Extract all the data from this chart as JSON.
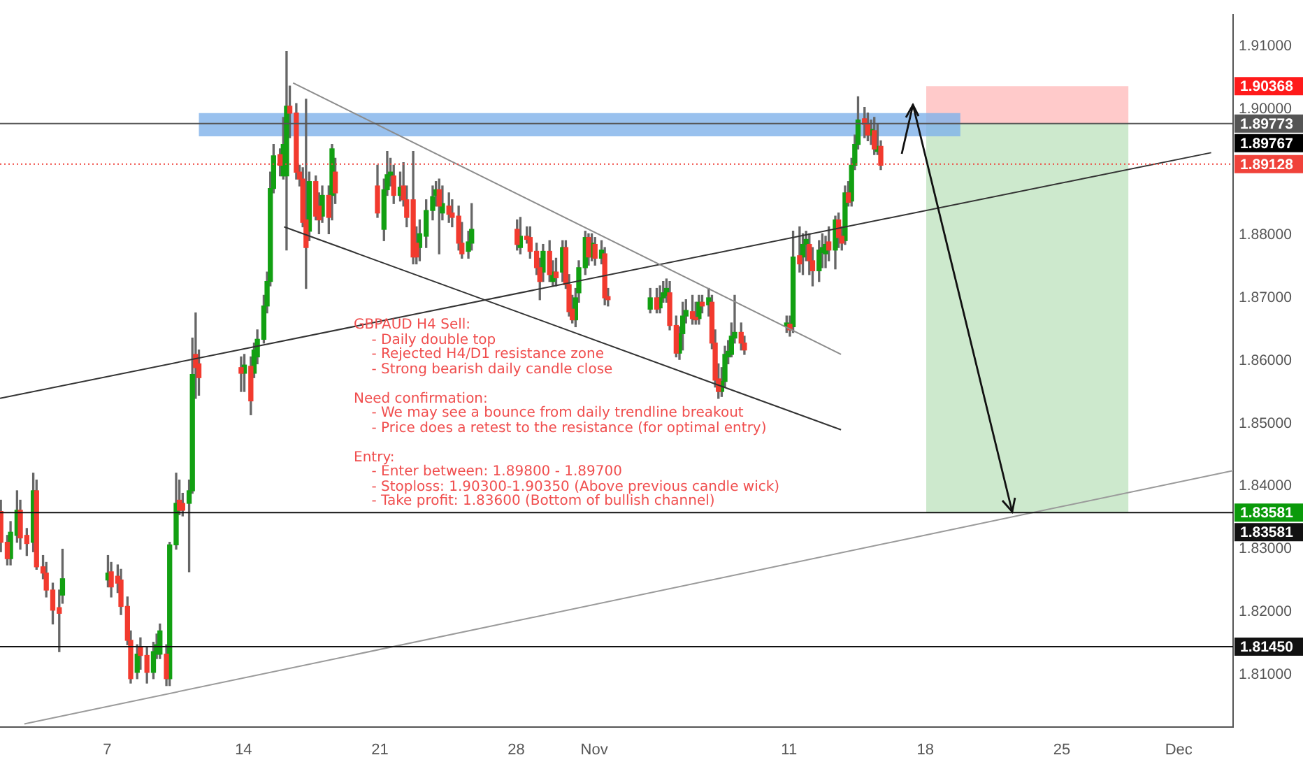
{
  "chart_data": {
    "type": "candlestick",
    "xlim": [
      "--10-01T12:00",
      "--12-03T19:00"
    ],
    "xticks": [
      {
        "value": "--10-07",
        "label": "7"
      },
      {
        "value": "--10-14",
        "label": "14"
      },
      {
        "value": "--10-21",
        "label": "21"
      },
      {
        "value": "--10-28",
        "label": "28"
      },
      {
        "value": "--11-01",
        "label": "Nov"
      },
      {
        "value": "--11-11",
        "label": "11"
      },
      {
        "value": "--11-18",
        "label": "18"
      },
      {
        "value": "--11-25",
        "label": "25"
      },
      {
        "value": "--12-01",
        "label": "Dec"
      }
    ],
    "ylim": [
      1.8017,
      1.9151
    ],
    "yticks": [
      {
        "value": 1.81,
        "label": "1.81000"
      },
      {
        "value": 1.82,
        "label": "1.82000"
      },
      {
        "value": 1.83,
        "label": "1.83000"
      },
      {
        "value": 1.84,
        "label": "1.84000"
      },
      {
        "value": 1.85,
        "label": "1.85000"
      },
      {
        "value": 1.86,
        "label": "1.86000"
      },
      {
        "value": 1.87,
        "label": "1.87000"
      },
      {
        "value": 1.88,
        "label": "1.88000"
      },
      {
        "value": 1.9,
        "label": "1.90000"
      },
      {
        "value": 1.91,
        "label": "1.91000"
      }
    ],
    "series": [
      {
        "type": "area",
        "color": "#ffcaca",
        "x": [
          "--11-18T01:00",
          "--11-28T10:00",
          "--11-28T10:00",
          "--11-18T01:00"
        ],
        "values": [
          1.90368,
          1.90368,
          1.89773,
          1.89773
        ]
      },
      {
        "type": "area",
        "color": "#cde9cd",
        "x": [
          "--11-18T01:00",
          "--11-28T10:00",
          "--11-28T10:00",
          "--11-18T01:00"
        ],
        "values": [
          1.89773,
          1.89773,
          1.83581,
          1.83581
        ]
      },
      {
        "type": "area",
        "color": "#7fb2ea",
        "x": [
          "--10-11T17:00",
          "--11-19T19:00",
          "--11-19T19:00",
          "--10-11T17:00"
        ],
        "values": [
          1.8994,
          1.8994,
          1.8957,
          1.8957
        ]
      },
      {
        "color": "#f23a2e",
        "x": [
          "--10-01T13:00",
          "--10-01T21:00",
          "--10-02T13:00",
          "--10-02T21:00",
          "--10-03T09:00",
          "--10-03T17:00",
          "--10-03T21:00",
          "--10-04T05:00",
          "--10-04T13:00",
          "--10-07T05:00",
          "--10-07T13:00",
          "--10-07T17:00",
          "--10-08T01:00",
          "--10-08T05:00",
          "--10-08T17:00",
          "--10-09T01:00",
          "--10-10T01:00",
          "--10-10T17:00",
          "--10-10T21:00",
          "--10-11T13:00",
          "--10-11T17:00",
          "--10-13T21:00",
          "--10-14T09:00",
          "--10-15T21:00",
          "--10-16T09:00",
          "--10-16T17:00",
          "--10-16T21:00",
          "--10-17T01:00",
          "--10-17T05:00",
          "--10-17T17:00",
          "--10-17T21:00",
          "--10-18T09:00",
          "--10-18T17:00",
          "--10-20T21:00",
          "--10-21T17:00",
          "--10-22T05:00",
          "--10-22T09:00",
          "--10-22T17:00",
          "--10-22T21:00",
          "--10-24T01:00",
          "--10-24T13:00",
          "--10-24T17:00",
          "--10-25T01:00",
          "--10-25T05:00",
          "--10-28T01:00",
          "--10-28T13:00",
          "--10-28T17:00",
          "--10-29T01:00",
          "--10-29T05:00",
          "--10-29T17:00",
          "--10-30T01:00",
          "--10-30T13:00",
          "--10-30T17:00",
          "--10-30T21:00",
          "--10-31T17:00",
          "--11-01T01:00",
          "--11-01T13:00",
          "--11-01T17:00",
          "--11-04T05:00",
          "--11-04T21:00",
          "--11-05T05:00",
          "--11-06T01:00",
          "--11-06T05:00",
          "--11-06T13:00",
          "--11-07T01:00",
          "--11-07T05:00",
          "--11-07T09:00",
          "--11-08T13:00",
          "--11-08T17:00",
          "--11-11T01:00",
          "--11-11T13:00",
          "--11-12T01:00",
          "--11-12T05:00",
          "--11-13T01:00",
          "--11-13T13:00",
          "--11-13T17:00",
          "--11-14T01:00",
          "--11-14T21:00",
          "--11-15T01:00",
          "--11-15T09:00",
          "--11-15T17:00"
        ],
        "ohlc": [
          [
            1.836,
            1.8378,
            1.8296,
            1.8311
          ],
          [
            1.8311,
            1.8322,
            1.8275,
            1.8285
          ],
          [
            1.8362,
            1.8378,
            1.83,
            1.8318
          ],
          [
            1.8322,
            1.8333,
            1.829,
            1.8309
          ],
          [
            1.8393,
            1.841,
            1.8268,
            1.8272
          ],
          [
            1.8272,
            1.829,
            1.8253,
            1.8262
          ],
          [
            1.8262,
            1.8279,
            1.8224,
            1.8235
          ],
          [
            1.8235,
            1.8246,
            1.8181,
            1.8203
          ],
          [
            1.8207,
            1.8235,
            1.8137,
            1.8198
          ],
          [
            1.8264,
            1.8279,
            1.8224,
            1.824
          ],
          [
            1.8257,
            1.8275,
            1.8231,
            1.8246
          ],
          [
            1.8251,
            1.8268,
            1.8196,
            1.8209
          ],
          [
            1.8209,
            1.8224,
            1.8148,
            1.8155
          ],
          [
            1.8155,
            1.817,
            1.8087,
            1.8094
          ],
          [
            1.8144,
            1.8159,
            1.8109,
            1.8131
          ],
          [
            1.8131,
            1.8144,
            1.8087,
            1.8104
          ],
          [
            1.8133,
            1.8148,
            1.8083,
            1.8094
          ],
          [
            1.8378,
            1.841,
            1.8355,
            1.8362
          ],
          [
            1.8373,
            1.8389,
            1.8353,
            1.8362
          ],
          [
            1.861,
            1.8676,
            1.854,
            1.8589
          ],
          [
            1.8595,
            1.8617,
            1.8545,
            1.8573
          ],
          [
            1.8589,
            1.8606,
            1.8551,
            1.858
          ],
          [
            1.8591,
            1.8606,
            1.8514,
            1.8536
          ],
          [
            1.8928,
            1.8937,
            1.8894,
            1.8911
          ],
          [
            1.9005,
            1.9037,
            1.8955,
            1.8994
          ],
          [
            1.8994,
            1.9009,
            1.8889,
            1.89
          ],
          [
            1.89,
            1.8911,
            1.8878,
            1.8889
          ],
          [
            1.8889,
            1.8907,
            1.8813,
            1.882
          ],
          [
            1.8824,
            1.9016,
            1.8715,
            1.878
          ],
          [
            1.8885,
            1.8894,
            1.8824,
            1.883
          ],
          [
            1.8846,
            1.8867,
            1.8802,
            1.8824
          ],
          [
            1.8863,
            1.8878,
            1.8802,
            1.8828
          ],
          [
            1.89,
            1.8922,
            1.885,
            1.8867
          ],
          [
            1.8878,
            1.8911,
            1.8828,
            1.8835
          ],
          [
            1.8894,
            1.8911,
            1.885,
            1.8863
          ],
          [
            1.8878,
            1.8915,
            1.8846,
            1.8856
          ],
          [
            1.8856,
            1.8878,
            1.8813,
            1.8828
          ],
          [
            1.8856,
            1.8933,
            1.8754,
            1.8765
          ],
          [
            1.8787,
            1.8813,
            1.8754,
            1.8765
          ],
          [
            1.8872,
            1.8889,
            1.877,
            1.8846
          ],
          [
            1.8846,
            1.8867,
            1.882,
            1.8833
          ],
          [
            1.8835,
            1.8856,
            1.8813,
            1.8828
          ],
          [
            1.883,
            1.8846,
            1.8776,
            1.8787
          ],
          [
            1.8787,
            1.882,
            1.8763,
            1.877
          ],
          [
            1.8809,
            1.8824,
            1.8776,
            1.8785
          ],
          [
            1.8798,
            1.8813,
            1.8787,
            1.8793
          ],
          [
            1.8796,
            1.8813,
            1.8763,
            1.8774
          ],
          [
            1.8774,
            1.8787,
            1.8737,
            1.8748
          ],
          [
            1.8748,
            1.8763,
            1.8697,
            1.8726
          ],
          [
            1.8774,
            1.8791,
            1.8726,
            1.8737
          ],
          [
            1.8741,
            1.8763,
            1.8719,
            1.8732
          ],
          [
            1.878,
            1.8791,
            1.8715,
            1.8721
          ],
          [
            1.8721,
            1.8737,
            1.8671,
            1.8678
          ],
          [
            1.8682,
            1.8704,
            1.866,
            1.8665
          ],
          [
            1.8796,
            1.8802,
            1.8752,
            1.8765
          ],
          [
            1.8785,
            1.8796,
            1.8752,
            1.8763
          ],
          [
            1.877,
            1.878,
            1.8689,
            1.87
          ],
          [
            1.8702,
            1.8715,
            1.8687,
            1.8697
          ],
          [
            1.87,
            1.8715,
            1.8676,
            1.8682
          ],
          [
            1.8708,
            1.8726,
            1.8649,
            1.8656
          ],
          [
            1.8656,
            1.8671,
            1.8606,
            1.8612
          ],
          [
            1.8678,
            1.8704,
            1.8658,
            1.8667
          ],
          [
            1.8669,
            1.8693,
            1.8658,
            1.8665
          ],
          [
            1.8693,
            1.8704,
            1.8676,
            1.8687
          ],
          [
            1.8693,
            1.8704,
            1.8619,
            1.8628
          ],
          [
            1.8628,
            1.8649,
            1.8558,
            1.8569
          ],
          [
            1.8571,
            1.8595,
            1.854,
            1.8551
          ],
          [
            1.8645,
            1.866,
            1.8617,
            1.8628
          ],
          [
            1.8628,
            1.8639,
            1.861,
            1.8617
          ],
          [
            1.8658,
            1.8671,
            1.8639,
            1.8649
          ],
          [
            1.8767,
            1.8813,
            1.8741,
            1.8754
          ],
          [
            1.8785,
            1.8802,
            1.8737,
            1.8759
          ],
          [
            1.8759,
            1.878,
            1.8719,
            1.8743
          ],
          [
            1.8789,
            1.8813,
            1.8759,
            1.8776
          ],
          [
            1.8824,
            1.8835,
            1.878,
            1.8796
          ],
          [
            1.8798,
            1.8813,
            1.8776,
            1.8787
          ],
          [
            1.8867,
            1.8885,
            1.8846,
            1.8852
          ],
          [
            1.8985,
            1.9003,
            1.8955,
            1.8976
          ],
          [
            1.8976,
            1.8994,
            1.895,
            1.8959
          ],
          [
            1.8966,
            1.8987,
            1.8928,
            1.8937
          ],
          [
            1.8941,
            1.895,
            1.8904,
            1.8911
          ]
        ]
      },
      {
        "color": "#12a012",
        "x": [
          "--10-02T01:00",
          "--10-02T09:00",
          "--10-03T05:00",
          "--10-04T17:00",
          "--10-07T01:00",
          "--10-08T13:00",
          "--10-09T09:00",
          "--10-09T13:00",
          "--10-09T17:00",
          "--10-10T05:00",
          "--10-10T13:00",
          "--10-11T05:00",
          "--10-11T09:00",
          "--10-14T01:00",
          "--10-14T13:00",
          "--10-14T17:00",
          "--10-15T01:00",
          "--10-15T05:00",
          "--10-15T09:00",
          "--10-15T13:00",
          "--10-16T01:00",
          "--10-16T05:00",
          "--10-17T09:00",
          "--10-18T01:00",
          "--10-18T13:00",
          "--10-21T05:00",
          "--10-21T09:00",
          "--10-21T13:00",
          "--10-22T01:00",
          "--10-23T01:00",
          "--10-23T09:00",
          "--10-23T17:00",
          "--10-23T21:00",
          "--10-24T05:00",
          "--10-25T13:00",
          "--10-25T17:00",
          "--10-28T05:00",
          "--10-29T09:00",
          "--10-29T21:00",
          "--10-30T09:00",
          "--10-31T01:00",
          "--10-31T05:00",
          "--10-31T13:00",
          "--10-31T21:00",
          "--11-01T09:00",
          "--11-03T21:00",
          "--11-04T09:00",
          "--11-04T13:00",
          "--11-04T17:00",
          "--11-05T09:00",
          "--11-05T13:00",
          "--11-05T17:00",
          "--11-06T09:00",
          "--11-06T21:00",
          "--11-07T13:00",
          "--11-07T17:00",
          "--11-07T21:00",
          "--11-08T01:00",
          "--11-08T05:00",
          "--11-10T21:00",
          "--11-11T05:00",
          "--11-11T17:00",
          "--11-11T21:00",
          "--11-12T13:00",
          "--11-12T17:00",
          "--11-12T21:00",
          "--11-13T09:00",
          "--11-13T21:00",
          "--11-14T05:00",
          "--11-14T09:00",
          "--11-14T13:00",
          "--11-15T05:00",
          "--11-15T13:00"
        ],
        "ohlc": [
          [
            1.8285,
            1.8344,
            1.8275,
            1.8327
          ],
          [
            1.8322,
            1.8393,
            1.8311,
            1.8362
          ],
          [
            1.8311,
            1.8421,
            1.8296,
            1.8393
          ],
          [
            1.8227,
            1.83,
            1.8214,
            1.8253
          ],
          [
            1.8251,
            1.829,
            1.824,
            1.8262
          ],
          [
            1.8104,
            1.8148,
            1.8094,
            1.8133
          ],
          [
            1.8104,
            1.8152,
            1.8094,
            1.8137
          ],
          [
            1.8133,
            1.8165,
            1.8126,
            1.8148
          ],
          [
            1.8133,
            1.8181,
            1.8126,
            1.817
          ],
          [
            1.8094,
            1.8311,
            1.8083,
            1.8307
          ],
          [
            1.8307,
            1.8421,
            1.83,
            1.8373
          ],
          [
            1.8373,
            1.841,
            1.8264,
            1.8393
          ],
          [
            1.8393,
            1.8636,
            1.8389,
            1.8578
          ],
          [
            1.858,
            1.861,
            1.8551,
            1.8593
          ],
          [
            1.858,
            1.8628,
            1.8573,
            1.8617
          ],
          [
            1.8606,
            1.8649,
            1.8595,
            1.8634
          ],
          [
            1.8634,
            1.8704,
            1.8628,
            1.8687
          ],
          [
            1.8687,
            1.8741,
            1.8676,
            1.8726
          ],
          [
            1.8726,
            1.89,
            1.8719,
            1.8874
          ],
          [
            1.8874,
            1.8944,
            1.8867,
            1.8926
          ],
          [
            1.8894,
            1.8987,
            1.8889,
            1.8944
          ],
          [
            1.8894,
            1.9092,
            1.8776,
            1.9005
          ],
          [
            1.8806,
            1.89,
            1.8791,
            1.8885
          ],
          [
            1.883,
            1.8878,
            1.882,
            1.8863
          ],
          [
            1.8863,
            1.8944,
            1.8824,
            1.8937
          ],
          [
            1.8809,
            1.8889,
            1.8791,
            1.8872
          ],
          [
            1.8872,
            1.8933,
            1.8863,
            1.8896
          ],
          [
            1.8894,
            1.8922,
            1.8878,
            1.89
          ],
          [
            1.8863,
            1.89,
            1.8854,
            1.8876
          ],
          [
            1.878,
            1.8824,
            1.8759,
            1.8802
          ],
          [
            1.8798,
            1.8856,
            1.878,
            1.8839
          ],
          [
            1.8839,
            1.8878,
            1.8824,
            1.8861
          ],
          [
            1.8863,
            1.8885,
            1.8846,
            1.8872
          ],
          [
            1.8835,
            1.8878,
            1.8824,
            1.885
          ],
          [
            1.8774,
            1.8806,
            1.8763,
            1.8789
          ],
          [
            1.8787,
            1.885,
            1.8776,
            1.8809
          ],
          [
            1.878,
            1.8828,
            1.877,
            1.8798
          ],
          [
            1.8741,
            1.8785,
            1.8726,
            1.8774
          ],
          [
            1.8726,
            1.8759,
            1.8719,
            1.8741
          ],
          [
            1.8741,
            1.8791,
            1.8726,
            1.878
          ],
          [
            1.8665,
            1.8715,
            1.8654,
            1.87
          ],
          [
            1.8708,
            1.8759,
            1.8693,
            1.8748
          ],
          [
            1.8748,
            1.8806,
            1.8737,
            1.8796
          ],
          [
            1.8765,
            1.8802,
            1.8759,
            1.8787
          ],
          [
            1.8763,
            1.8791,
            1.8754,
            1.8776
          ],
          [
            1.8682,
            1.8715,
            1.8676,
            1.87
          ],
          [
            1.8684,
            1.8719,
            1.8676,
            1.87
          ],
          [
            1.87,
            1.8726,
            1.8693,
            1.8708
          ],
          [
            1.8704,
            1.873,
            1.8693,
            1.8715
          ],
          [
            1.8612,
            1.8654,
            1.8602,
            1.8643
          ],
          [
            1.8643,
            1.8693,
            1.8617,
            1.8671
          ],
          [
            1.8671,
            1.8697,
            1.866,
            1.868
          ],
          [
            1.8667,
            1.8704,
            1.8658,
            1.8693
          ],
          [
            1.8689,
            1.8715,
            1.8671,
            1.87
          ],
          [
            1.8551,
            1.8589,
            1.8543,
            1.8567
          ],
          [
            1.8567,
            1.8623,
            1.8558,
            1.861
          ],
          [
            1.8606,
            1.8632,
            1.8595,
            1.8615
          ],
          [
            1.861,
            1.866,
            1.8606,
            1.8639
          ],
          [
            1.8636,
            1.8704,
            1.8628,
            1.8645
          ],
          [
            1.8654,
            1.8671,
            1.8645,
            1.866
          ],
          [
            1.8654,
            1.8806,
            1.8645,
            1.8765
          ],
          [
            1.8765,
            1.8802,
            1.8737,
            1.8785
          ],
          [
            1.8785,
            1.8806,
            1.8759,
            1.8793
          ],
          [
            1.8743,
            1.8791,
            1.8726,
            1.8776
          ],
          [
            1.8772,
            1.8802,
            1.8748,
            1.878
          ],
          [
            1.877,
            1.8798,
            1.8748,
            1.8785
          ],
          [
            1.8776,
            1.883,
            1.8746,
            1.8824
          ],
          [
            1.8791,
            1.8878,
            1.8785,
            1.8867
          ],
          [
            1.8854,
            1.8922,
            1.8846,
            1.8911
          ],
          [
            1.8911,
            1.8959,
            1.8904,
            1.8944
          ],
          [
            1.8944,
            1.902,
            1.8937,
            1.8983
          ],
          [
            1.8959,
            1.8983,
            1.8944,
            1.8968
          ],
          [
            1.8933,
            1.8976,
            1.8928,
            1.8941
          ]
        ]
      },
      {
        "type": "line",
        "color": "#8c8c8c",
        "x": [
          "--10-16T13:00",
          "--11-13T16:00"
        ],
        "values": [
          1.9042,
          1.861
        ]
      },
      {
        "type": "line",
        "color": "#333333",
        "x": [
          "--10-16T02:00",
          "--11-13T16:00"
        ],
        "values": [
          1.8813,
          1.849
        ]
      },
      {
        "type": "line",
        "color": "#333333",
        "x": [
          "--10-01T12:00",
          "--12-02T16:00"
        ],
        "values": [
          1.854,
          1.8931
        ]
      },
      {
        "type": "line",
        "color": "#9a9a9a",
        "x": [
          "--10-02T18:00",
          "--12-03T19:00"
        ],
        "values": [
          1.8022,
          1.8425
        ]
      }
    ],
    "ref_lines": [
      {
        "axis": "y",
        "value": 1.89773,
        "label": "1.89773",
        "color": "#555555"
      },
      {
        "axis": "y",
        "value": 1.89128,
        "label": "1.89128",
        "color": "#f0423a",
        "line_style": "dotted"
      },
      {
        "axis": "y",
        "value": 1.83581,
        "label": "1.83581",
        "color": "#111111"
      },
      {
        "axis": "y",
        "value": 1.8145,
        "label": "1.81450",
        "color": "#111111"
      }
    ],
    "annotations": [
      "GBPAUD H4 Sell:\n    - Daily double top\n    - Rejected H4/D1 resistance zone\n    - Strong bearish daily candle close\n\nNeed confirmation:\n    - We may see a bounce from daily trendline breakout\n    - Price does a retest to the resistance (for optimal entry)\n\nEntry:\n    - Enter between: 1.89800 - 1.89700\n    - Stoploss: 1.90300-1.90350 (Above previous candle wick)\n    - Take profit: 1.83600 (Bottom of bullish channel)",
      "1.90368",
      "1.89767",
      "1.83581"
    ]
  }
}
